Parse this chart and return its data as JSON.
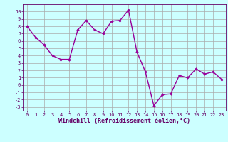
{
  "x": [
    0,
    1,
    2,
    3,
    4,
    5,
    6,
    7,
    8,
    9,
    10,
    11,
    12,
    13,
    14,
    15,
    16,
    17,
    18,
    19,
    20,
    21,
    22,
    23
  ],
  "y": [
    8.0,
    6.5,
    5.5,
    4.0,
    3.5,
    3.5,
    7.5,
    8.8,
    7.5,
    7.0,
    8.7,
    8.8,
    10.2,
    4.5,
    1.8,
    -2.8,
    -1.3,
    -1.2,
    1.3,
    1.0,
    2.2,
    1.5,
    1.8,
    0.8
  ],
  "line_color": "#990099",
  "marker": "D",
  "marker_size": 1.8,
  "bg_color": "#ccffff",
  "grid_color": "#aaaaaa",
  "xlim": [
    -0.5,
    23.5
  ],
  "ylim": [
    -3.5,
    11.0
  ],
  "yticks": [
    -3,
    -2,
    -1,
    0,
    1,
    2,
    3,
    4,
    5,
    6,
    7,
    8,
    9,
    10
  ],
  "xticks": [
    0,
    1,
    2,
    3,
    4,
    5,
    6,
    7,
    8,
    9,
    10,
    11,
    12,
    13,
    14,
    15,
    16,
    17,
    18,
    19,
    20,
    21,
    22,
    23
  ],
  "xlabel": "Windchill (Refroidissement éolien,°C)",
  "tick_color": "#660066",
  "label_color": "#660066",
  "font_size_label": 6.0,
  "font_size_tick": 5.0,
  "line_width": 1.0
}
